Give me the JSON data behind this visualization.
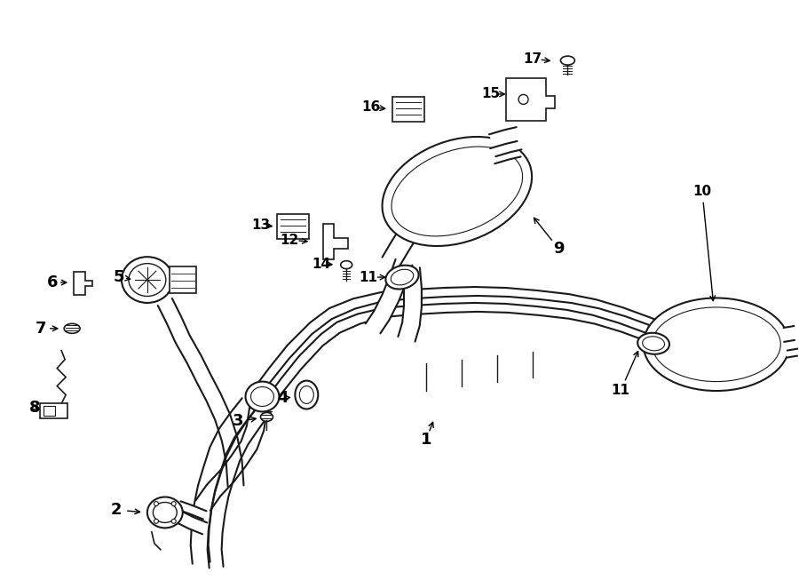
{
  "background_color": "#ffffff",
  "line_color": "#1a1a1a",
  "fig_width": 9.0,
  "fig_height": 6.62,
  "dpi": 100
}
